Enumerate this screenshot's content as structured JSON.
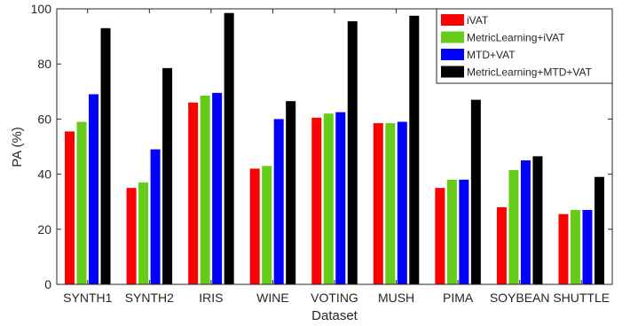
{
  "chart_data": {
    "type": "bar",
    "xlabel": "Dataset",
    "ylabel": "PA (%)",
    "ylim": [
      0,
      100
    ],
    "yticks": [
      0,
      20,
      40,
      60,
      80,
      100
    ],
    "grid": false,
    "legend_position": "top-right",
    "categories": [
      "SYNTH1",
      "SYNTH2",
      "IRIS",
      "WINE",
      "VOTING",
      "MUSH",
      "PIMA",
      "SOYBEAN",
      "SHUTTLE"
    ],
    "series": [
      {
        "name": "iVAT",
        "color": "#ff0000",
        "values": [
          55.5,
          35,
          66,
          42,
          60.5,
          58.5,
          35,
          28,
          25.5
        ]
      },
      {
        "name": "MetricLearning+iVAT",
        "color": "#66cc1a",
        "values": [
          59,
          37,
          68.5,
          43,
          62,
          58.5,
          38,
          41.5,
          27
        ]
      },
      {
        "name": "MTD+VAT",
        "color": "#0000ff",
        "values": [
          69,
          49,
          69.5,
          60,
          62.5,
          59,
          38,
          45,
          27
        ]
      },
      {
        "name": "MetricLearning+MTD+VAT",
        "color": "#000000",
        "values": [
          93,
          78.5,
          98.5,
          66.5,
          95.5,
          97.5,
          67,
          46.5,
          39
        ]
      }
    ]
  }
}
